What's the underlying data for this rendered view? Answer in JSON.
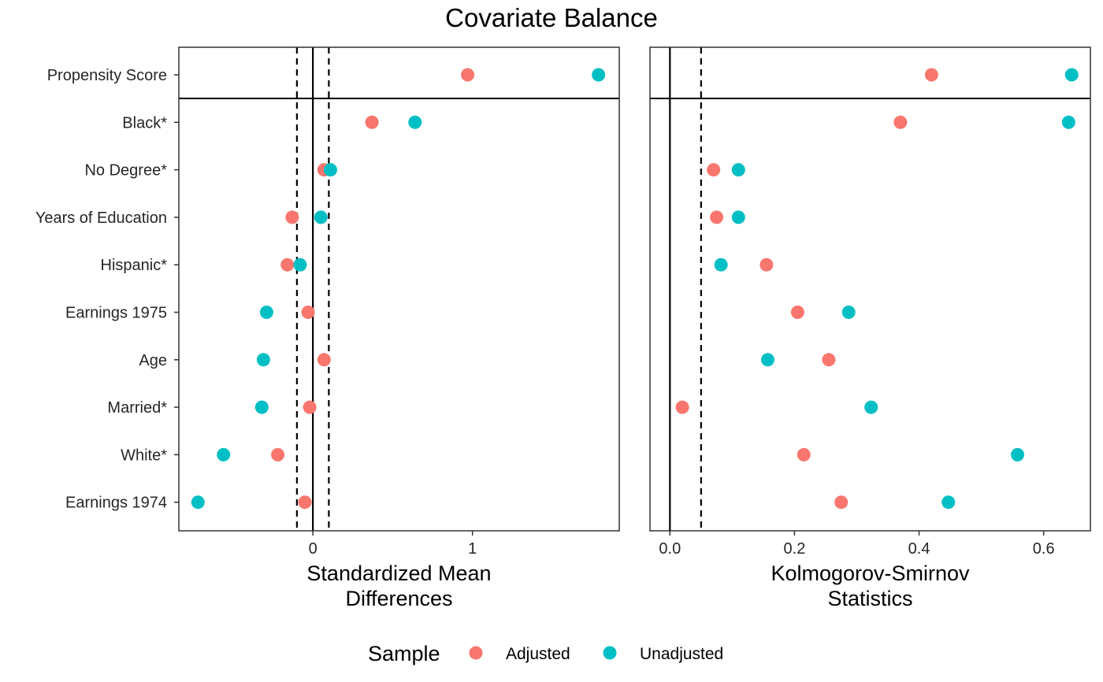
{
  "chart_data": {
    "type": "scatter",
    "title": "Covariate Balance",
    "covariates": [
      "Propensity Score",
      "Black*",
      "No Degree*",
      "Years of Education",
      "Hispanic*",
      "Earnings 1975",
      "Age",
      "Married*",
      "White*",
      "Earnings 1974"
    ],
    "legend": {
      "title": "Sample",
      "position": "bottom",
      "entries": [
        {
          "name": "Adjusted",
          "color": "#F8766D"
        },
        {
          "name": "Unadjusted",
          "color": "#00BFC4"
        }
      ]
    },
    "panels": [
      {
        "id": "smd",
        "xlabel_lines": [
          "Standardized Mean",
          "Differences"
        ],
        "xlim": [
          -0.84,
          1.92
        ],
        "xticks": [
          0,
          1
        ],
        "x_tick_labels": [
          "0",
          "1"
        ],
        "threshold_lines": [
          -0.1,
          0,
          0.1
        ],
        "series": [
          {
            "name": "Adjusted",
            "values": [
              0.97,
              0.37,
              0.07,
              -0.13,
              -0.16,
              -0.03,
              0.07,
              -0.02,
              -0.22,
              -0.05
            ]
          },
          {
            "name": "Unadjusted",
            "values": [
              1.79,
              0.64,
              0.11,
              0.05,
              -0.08,
              -0.29,
              -0.31,
              -0.32,
              -0.56,
              -0.72
            ]
          }
        ]
      },
      {
        "id": "ks",
        "xlabel_lines": [
          "Kolmogorov-Smirnov",
          "Statistics"
        ],
        "xlim": [
          -0.032,
          0.675
        ],
        "xticks": [
          0,
          0.2,
          0.4,
          0.6
        ],
        "x_tick_labels": [
          "0.0",
          "0.2",
          "0.4",
          "0.6"
        ],
        "threshold_lines": [
          0,
          0.05
        ],
        "series": [
          {
            "name": "Adjusted",
            "values": [
              0.42,
              0.37,
              0.07,
              0.075,
              0.155,
              0.205,
              0.255,
              0.02,
              0.215,
              0.275
            ]
          },
          {
            "name": "Unadjusted",
            "values": [
              0.645,
              0.64,
              0.11,
              0.11,
              0.082,
              0.287,
              0.157,
              0.323,
              0.558,
              0.447
            ]
          }
        ]
      }
    ]
  }
}
